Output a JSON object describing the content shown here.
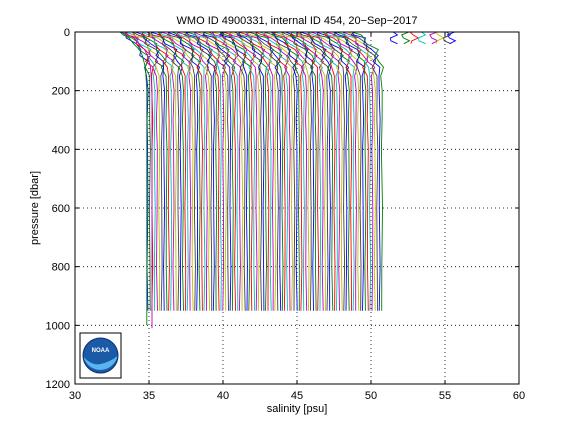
{
  "chart_data": {
    "type": "line",
    "title": "WMO ID 4900331, internal ID 454, 20−Sep−2017",
    "xlabel": "salinity [psu]",
    "ylabel": "pressure [dbar]",
    "xlim": [
      30,
      60
    ],
    "ylim": [
      0,
      1200
    ],
    "y_inverted": true,
    "xticks": [
      "30",
      "35",
      "40",
      "45",
      "50",
      "55",
      "60"
    ],
    "yticks": [
      "0",
      "200",
      "400",
      "600",
      "800",
      "1000",
      "1200"
    ],
    "grid": true,
    "profile_count": 100,
    "profile_salinity_range": [
      34.9,
      50.6
    ],
    "profile_offset_step": 0.16,
    "profile_pressure_levels": [
      0,
      10,
      20,
      40,
      60,
      80,
      100,
      120,
      150,
      200,
      300,
      400,
      600,
      800,
      950
    ],
    "profile_template_offsets": [
      -1.8,
      -1.6,
      -1.2,
      -0.9,
      -0.5,
      -0.3,
      -0.2,
      -0.1,
      -0.05,
      0,
      0,
      0,
      0,
      0,
      0
    ],
    "colors": [
      "#0000ff",
      "#008000",
      "#ff0000",
      "#00bfbf",
      "#bf00bf",
      "#bfbf00",
      "#404040"
    ],
    "logo": {
      "label": "NOAA",
      "name": "noaa-logo"
    }
  }
}
